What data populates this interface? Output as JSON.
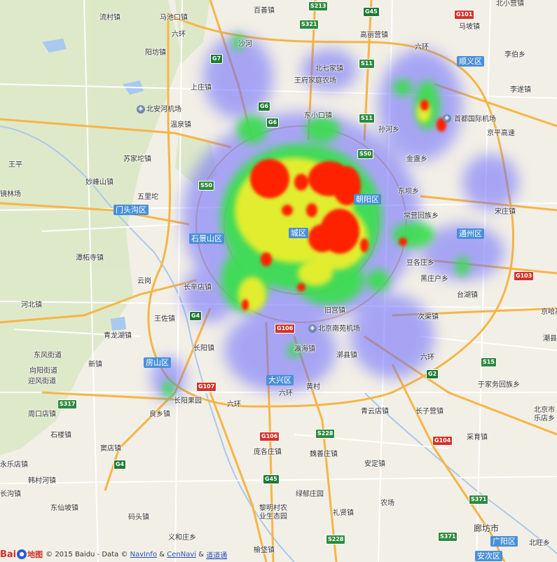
{
  "map": {
    "attribution": {
      "logo_text_b": "Bai",
      "logo_text_du": "du",
      "logo_text_map": "地图",
      "copyright": "© 2015 Baidu - Data ©",
      "link_navinfo": "NavInfo",
      "amp1": "&",
      "link_cennavi": "CenNavi",
      "amp2": "&",
      "link_daodao": "道道通"
    },
    "districts": [
      "门头沟区",
      "石景山区",
      "房山区",
      "大兴区",
      "通州区",
      "顺义区",
      "廊坊市",
      "广阳区",
      "安次区",
      "朝阳区",
      "城区"
    ],
    "places": [
      "流村镇",
      "马池口镇",
      "百善镇",
      "北小营镇",
      "马坡镇",
      "李伯乡",
      "阳坊镇",
      "沙河",
      "高丽营镇",
      "北七家镇",
      "李遂镇",
      "上庄镇",
      "王府家庭农场",
      "首都国际机场",
      "温泉镇",
      "东小口镇",
      "孙河乡",
      "京平高速",
      "苏家坨镇",
      "北安河机场",
      "金盏乡",
      "王平",
      "妙峰山镇",
      "五里坨",
      "东坝乡",
      "镜林场",
      "常营回族乡",
      "潭柘寺镇",
      "豆各庄乡",
      "云岗",
      "长辛店镇",
      "黑庄户乡",
      "宋庄镇",
      "河北镇",
      "王佐镇",
      "旧宫镇",
      "北京南苑机场",
      "次渠镇",
      "台湖镇",
      "漷县镇",
      "长阳镇",
      "青龙湖镇",
      "东风街道",
      "向阳街道",
      "迎风街道",
      "新镇",
      "瀛海镇",
      "于家务回族乡",
      "长阳果园",
      "黄村",
      "周口店镇",
      "良乡镇",
      "青云店镇",
      "长子营镇",
      "北京市乐店乡",
      "石楼镇",
      "窦店镇",
      "庞各庄镇",
      "魏善庄镇",
      "采育镇",
      "韩村河镇",
      "安定镇",
      "长沟镇",
      "东仙坡镇",
      "绿郁庄园",
      "黎明村农业生态园",
      "礼贤镇",
      "农场",
      "码头镇",
      "义和庄乡",
      "榆垡镇",
      "北旺乡",
      "永乐店镇",
      "潮县镇",
      "廊坊市区",
      "京哈高速",
      "六环",
      "张家湾镇"
    ],
    "shields": [
      "S213",
      "G45",
      "G101",
      "S321",
      "S11",
      "G7",
      "G6",
      "S50",
      "S11",
      "G6",
      "S50",
      "G4",
      "G106",
      "G107",
      "S317",
      "G4",
      "G106",
      "G45",
      "S228",
      "G104",
      "S371",
      "S371",
      "S228",
      "S15",
      "G2",
      "G103"
    ],
    "airports": [
      "北安河机场",
      "首都国际机场",
      "北京南苑机场"
    ]
  },
  "colors": {
    "land": "#f2efe6",
    "mountain": "#d9e8c8",
    "water": "#a9c9ee",
    "road_major": "#f7b545",
    "road_minor": "#ffffff",
    "heat_low": "#6a6bff",
    "heat_mid": "#38e04a",
    "heat_high": "#ff2200"
  }
}
